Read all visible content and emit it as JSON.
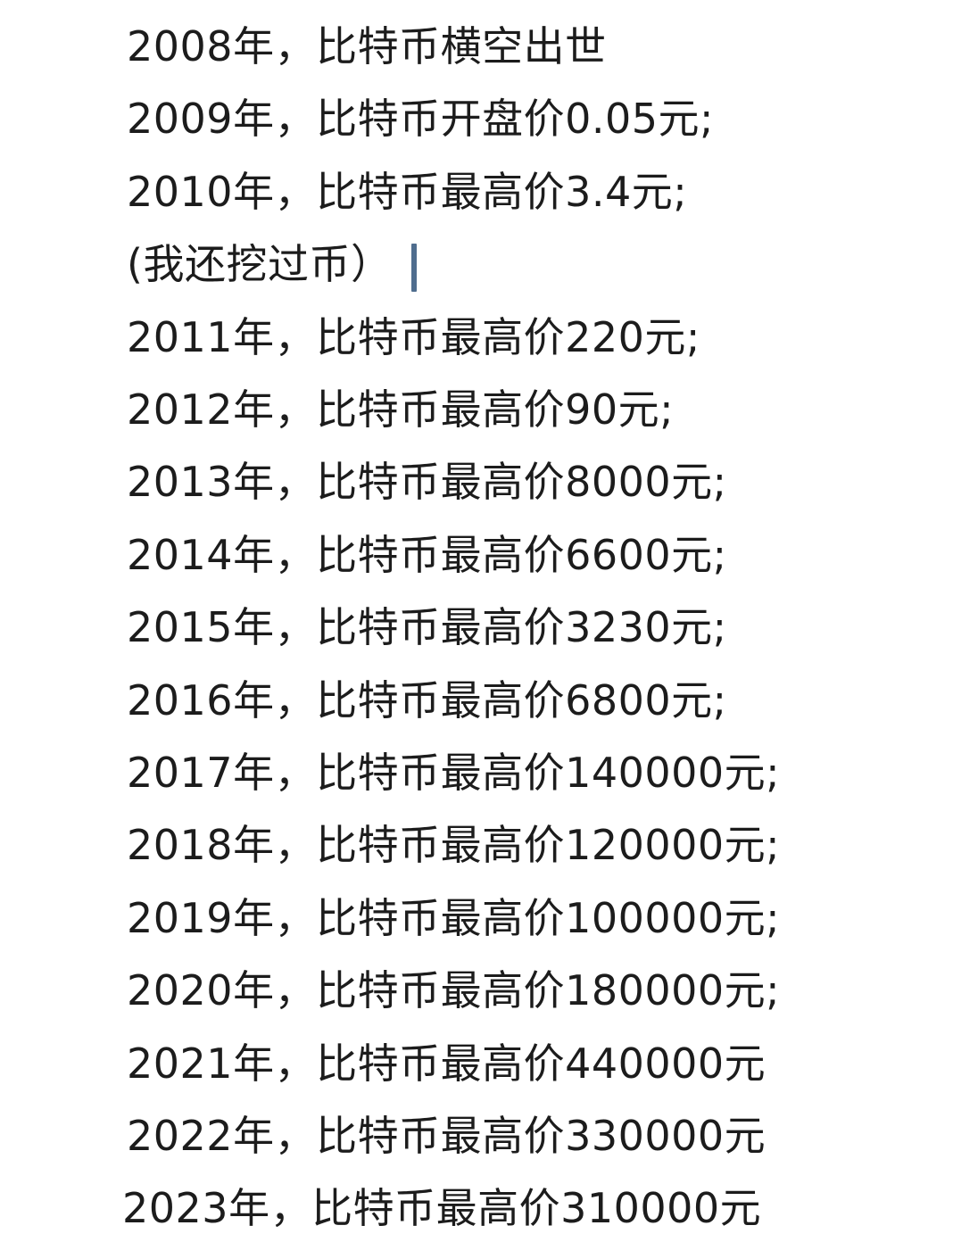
{
  "lines": [
    "2008年，比特币横空出世",
    "2009年，比特币开盘价0.05元;",
    "2010年，比特币最高价3.4元;",
    "(我还挖过币）",
    "2011年，比特币最高价220元;",
    "2012年，比特币最高价90元;",
    "2013年，比特币最高价8000元;",
    "2014年，比特币最高价6600元;",
    "2015年，比特币最高价3230元;",
    "2016年，比特币最高价6800元;",
    "2017年，比特币最高价140000元;",
    "2018年，比特币最高价120000元;",
    "2019年，比特币最高价100000元;",
    "2020年，比特币最高价180000元;",
    "2021年，比特币最高价440000元",
    "2022年，比特币最高价330000元",
    "2023年，比特币最高价310000元"
  ],
  "cursor_color": "#4f6d8e"
}
